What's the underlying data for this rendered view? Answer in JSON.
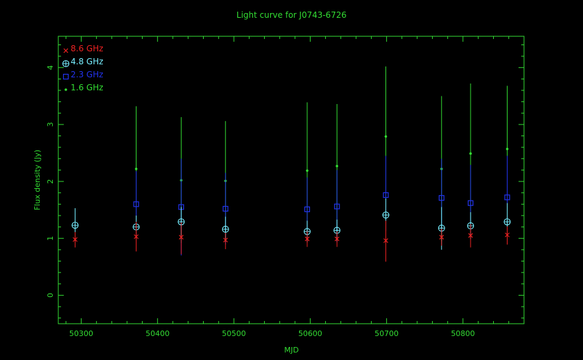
{
  "chart_data": {
    "type": "scatter",
    "title": "Light curve for J0743-6726",
    "xlabel": "MJD",
    "ylabel": "Flux density (Jy)",
    "xlim": [
      50270,
      50880
    ],
    "ylim": [
      -0.5,
      4.55
    ],
    "xticks": [
      50300,
      50400,
      50500,
      50600,
      50700,
      50800
    ],
    "yticks": [
      0,
      1,
      2,
      3,
      4
    ],
    "grid": false,
    "legend_position": "top-left",
    "colors": {
      "axis": "#33dd33",
      "background": "#000000"
    },
    "series": [
      {
        "name": "8.6 GHz",
        "marker": "x",
        "color": "#ee2222",
        "points": [
          {
            "x": 50292,
            "y": 0.98,
            "lo": 0.84,
            "hi": 1.11
          },
          {
            "x": 50372,
            "y": 1.03,
            "lo": 0.77,
            "hi": 1.29
          },
          {
            "x": 50431,
            "y": 1.02,
            "lo": 0.72,
            "hi": 1.28
          },
          {
            "x": 50489,
            "y": 0.97,
            "lo": 0.81,
            "hi": 1.1
          },
          {
            "x": 50596,
            "y": 0.99,
            "lo": 0.85,
            "hi": 1.13
          },
          {
            "x": 50635,
            "y": 0.99,
            "lo": 0.85,
            "hi": 1.12
          },
          {
            "x": 50699,
            "y": 0.96,
            "lo": 0.59,
            "hi": 1.31
          },
          {
            "x": 50772,
            "y": 1.02,
            "lo": 0.87,
            "hi": 1.17
          },
          {
            "x": 50810,
            "y": 1.05,
            "lo": 0.84,
            "hi": 1.25
          },
          {
            "x": 50858,
            "y": 1.06,
            "lo": 0.89,
            "hi": 1.21
          }
        ]
      },
      {
        "name": "4.8 GHz",
        "marker": "circle-plus",
        "color": "#77eeff",
        "points": [
          {
            "x": 50292,
            "y": 1.23,
            "lo": 0.93,
            "hi": 1.53
          },
          {
            "x": 50372,
            "y": 1.2,
            "lo": 1.0,
            "hi": 1.4
          },
          {
            "x": 50431,
            "y": 1.29,
            "lo": 1.05,
            "hi": 1.55
          },
          {
            "x": 50489,
            "y": 1.16,
            "lo": 0.94,
            "hi": 1.38
          },
          {
            "x": 50596,
            "y": 1.12,
            "lo": 0.93,
            "hi": 1.31
          },
          {
            "x": 50635,
            "y": 1.14,
            "lo": 0.95,
            "hi": 1.33
          },
          {
            "x": 50699,
            "y": 1.41,
            "lo": 1.13,
            "hi": 1.7
          },
          {
            "x": 50772,
            "y": 1.18,
            "lo": 0.8,
            "hi": 1.55
          },
          {
            "x": 50810,
            "y": 1.22,
            "lo": 0.99,
            "hi": 1.46
          },
          {
            "x": 50858,
            "y": 1.29,
            "lo": 0.99,
            "hi": 1.62
          }
        ]
      },
      {
        "name": "2.3 GHz",
        "marker": "square",
        "color": "#2233ee",
        "points": [
          {
            "x": 50372,
            "y": 1.6,
            "lo": 1.02,
            "hi": 2.18
          },
          {
            "x": 50431,
            "y": 1.55,
            "lo": 0.7,
            "hi": 2.4
          },
          {
            "x": 50489,
            "y": 1.52,
            "lo": 0.89,
            "hi": 2.15
          },
          {
            "x": 50596,
            "y": 1.51,
            "lo": 0.95,
            "hi": 2.07
          },
          {
            "x": 50635,
            "y": 1.56,
            "lo": 0.93,
            "hi": 2.2
          },
          {
            "x": 50699,
            "y": 1.76,
            "lo": 1.15,
            "hi": 2.45
          },
          {
            "x": 50772,
            "y": 1.71,
            "lo": 1.1,
            "hi": 2.4
          },
          {
            "x": 50810,
            "y": 1.62,
            "lo": 0.98,
            "hi": 2.29
          },
          {
            "x": 50858,
            "y": 1.72,
            "lo": 1.0,
            "hi": 2.45
          }
        ]
      },
      {
        "name": "1.6 GHz",
        "marker": "dot",
        "color": "#33dd33",
        "points": [
          {
            "x": 50372,
            "y": 2.22,
            "lo": 1.12,
            "hi": 3.32
          },
          {
            "x": 50431,
            "y": 2.02,
            "lo": 0.92,
            "hi": 3.13
          },
          {
            "x": 50489,
            "y": 2.01,
            "lo": 0.97,
            "hi": 3.06
          },
          {
            "x": 50596,
            "y": 2.19,
            "lo": 1.0,
            "hi": 3.39
          },
          {
            "x": 50635,
            "y": 2.27,
            "lo": 1.18,
            "hi": 3.36
          },
          {
            "x": 50699,
            "y": 2.79,
            "lo": 1.55,
            "hi": 4.02
          },
          {
            "x": 50772,
            "y": 2.22,
            "lo": 0.95,
            "hi": 3.5
          },
          {
            "x": 50810,
            "y": 2.49,
            "lo": 1.25,
            "hi": 3.72
          },
          {
            "x": 50858,
            "y": 2.57,
            "lo": 1.45,
            "hi": 3.68
          }
        ]
      }
    ]
  }
}
